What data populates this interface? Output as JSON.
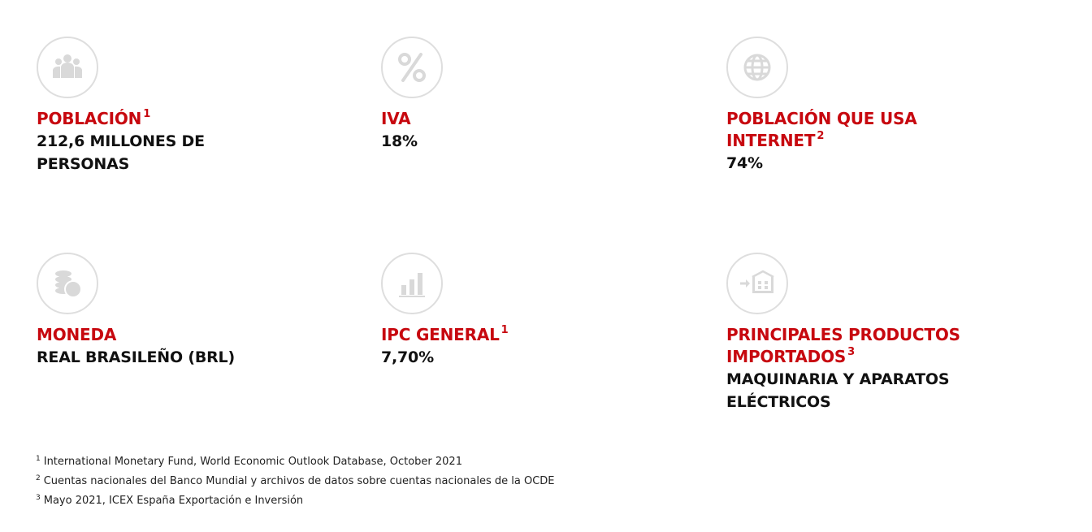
{
  "accent_color": "#c7080f",
  "icon_color": "#d9d9d9",
  "cards": [
    {
      "icon": "people-icon",
      "title": "POBLACIÓN",
      "title_line2": "",
      "footnote_ref": "1",
      "value_line1": "212,6 MILLONES DE",
      "value_line2": "PERSONAS"
    },
    {
      "icon": "percent-icon",
      "title": "IVA",
      "title_line2": "",
      "footnote_ref": "",
      "value_line1": "18%",
      "value_line2": ""
    },
    {
      "icon": "globe-icon",
      "title": "POBLACIÓN QUE USA",
      "title_line2": "INTERNET",
      "footnote_ref": "2",
      "value_line1": "74%",
      "value_line2": ""
    },
    {
      "icon": "coins-icon",
      "title": "MONEDA",
      "title_line2": "",
      "footnote_ref": "",
      "value_line1": "REAL BRASILEÑO (BRL)",
      "value_line2": ""
    },
    {
      "icon": "bar-chart-icon",
      "title": "IPC GENERAL",
      "title_line2": "",
      "footnote_ref": "1",
      "value_line1": "7,70%",
      "value_line2": ""
    },
    {
      "icon": "warehouse-import-icon",
      "title": "PRINCIPALES PRODUCTOS",
      "title_line2": "IMPORTADOS",
      "footnote_ref": "3",
      "value_line1": "MAQUINARIA Y APARATOS",
      "value_line2": "ELÉCTRICOS"
    }
  ],
  "footnotes": [
    {
      "num": "1",
      "text": "International Monetary Fund, World Economic Outlook Database, October 2021"
    },
    {
      "num": "2",
      "text": "Cuentas nacionales del Banco Mundial y archivos de datos sobre cuentas nacionales de la OCDE"
    },
    {
      "num": "3",
      "text": "Mayo 2021, ICEX España Exportación e Inversión"
    }
  ]
}
